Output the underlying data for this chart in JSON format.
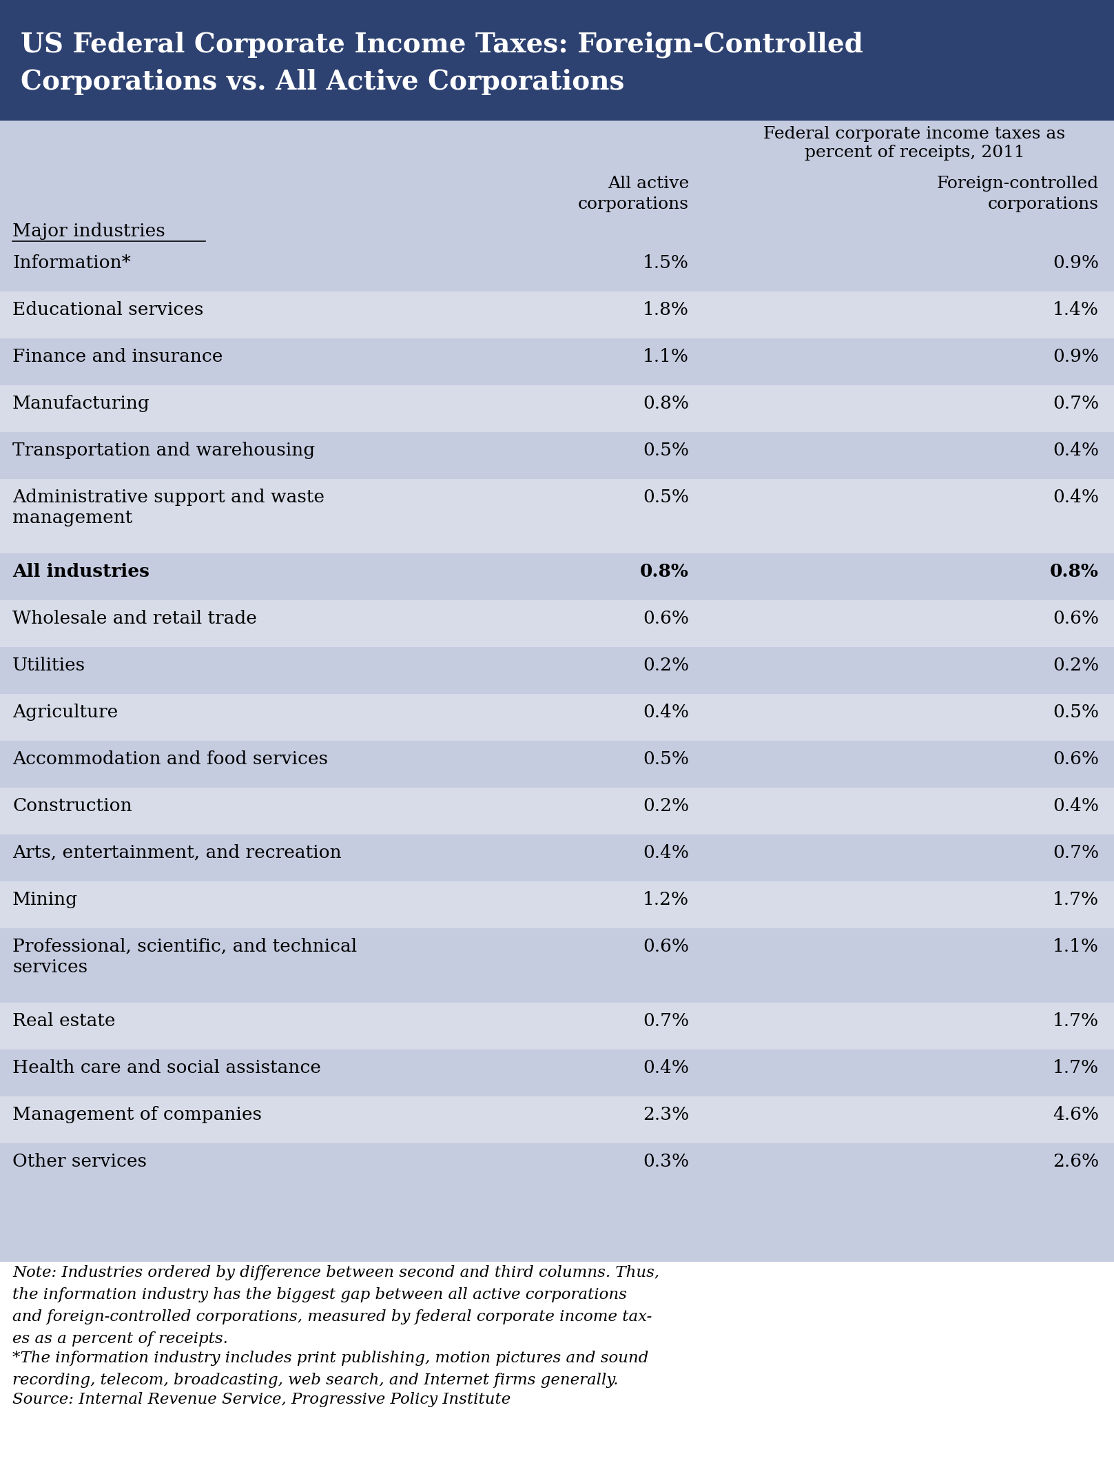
{
  "title_line1": "US Federal Corporate Income Taxes: Foreign-Controlled",
  "title_line2": "Corporations vs. All Active Corporations",
  "title_bg_color": "#2E4272",
  "title_text_color": "#FFFFFF",
  "table_bg_color": "#C5CCE0",
  "header_subtitle": "Federal corporate income taxes as\npercent of receipts, 2011",
  "col1_header_line1": "All active",
  "col1_header_line2": "corporations",
  "col2_header_line1": "Foreign-controlled",
  "col2_header_line2": "corporations",
  "column_header_label": "Major industries",
  "rows": [
    {
      "industry": "Information*",
      "all_active": "1.5%",
      "foreign": "0.9%",
      "bold": false,
      "multiline": false
    },
    {
      "industry": "Educational services",
      "all_active": "1.8%",
      "foreign": "1.4%",
      "bold": false,
      "multiline": false
    },
    {
      "industry": "Finance and insurance",
      "all_active": "1.1%",
      "foreign": "0.9%",
      "bold": false,
      "multiline": false
    },
    {
      "industry": "Manufacturing",
      "all_active": "0.8%",
      "foreign": "0.7%",
      "bold": false,
      "multiline": false
    },
    {
      "industry": "Transportation and warehousing",
      "all_active": "0.5%",
      "foreign": "0.4%",
      "bold": false,
      "multiline": false
    },
    {
      "industry": "Administrative support and waste\nmanagement",
      "all_active": "0.5%",
      "foreign": "0.4%",
      "bold": false,
      "multiline": true
    },
    {
      "industry": "All industries",
      "all_active": "0.8%",
      "foreign": "0.8%",
      "bold": true,
      "multiline": false
    },
    {
      "industry": "Wholesale and retail trade",
      "all_active": "0.6%",
      "foreign": "0.6%",
      "bold": false,
      "multiline": false
    },
    {
      "industry": "Utilities",
      "all_active": "0.2%",
      "foreign": "0.2%",
      "bold": false,
      "multiline": false
    },
    {
      "industry": "Agriculture",
      "all_active": "0.4%",
      "foreign": "0.5%",
      "bold": false,
      "multiline": false
    },
    {
      "industry": "Accommodation and food services",
      "all_active": "0.5%",
      "foreign": "0.6%",
      "bold": false,
      "multiline": false
    },
    {
      "industry": "Construction",
      "all_active": "0.2%",
      "foreign": "0.4%",
      "bold": false,
      "multiline": false
    },
    {
      "industry": "Arts, entertainment, and recreation",
      "all_active": "0.4%",
      "foreign": "0.7%",
      "bold": false,
      "multiline": false
    },
    {
      "industry": "Mining",
      "all_active": "1.2%",
      "foreign": "1.7%",
      "bold": false,
      "multiline": false
    },
    {
      "industry": "Professional, scientific, and technical\nservices",
      "all_active": "0.6%",
      "foreign": "1.1%",
      "bold": false,
      "multiline": true
    },
    {
      "industry": "Real estate",
      "all_active": "0.7%",
      "foreign": "1.7%",
      "bold": false,
      "multiline": false
    },
    {
      "industry": "Health care and social assistance",
      "all_active": "0.4%",
      "foreign": "1.7%",
      "bold": false,
      "multiline": false
    },
    {
      "industry": "Management of companies",
      "all_active": "2.3%",
      "foreign": "4.6%",
      "bold": false,
      "multiline": false
    },
    {
      "industry": "Other services",
      "all_active": "0.3%",
      "foreign": "2.6%",
      "bold": false,
      "multiline": false
    }
  ],
  "note_text": "Note: Industries ordered by difference between second and third columns. Thus,\nthe information industry has the biggest gap between all active corporations\nand foreign-controlled corporations, measured by federal corporate income tax-\nes as a percent of receipts.",
  "footnote_text": "*The information industry includes print publishing, motion pictures and sound\nrecording, telecom, broadcasting, web search, and Internet firms generally.",
  "source_text": "Source: Internal Revenue Service, Progressive Policy Institute",
  "text_color": "#000000",
  "row_even_color": "#C5CCE0",
  "row_odd_color": "#D8DCE8",
  "font_family": "serif"
}
